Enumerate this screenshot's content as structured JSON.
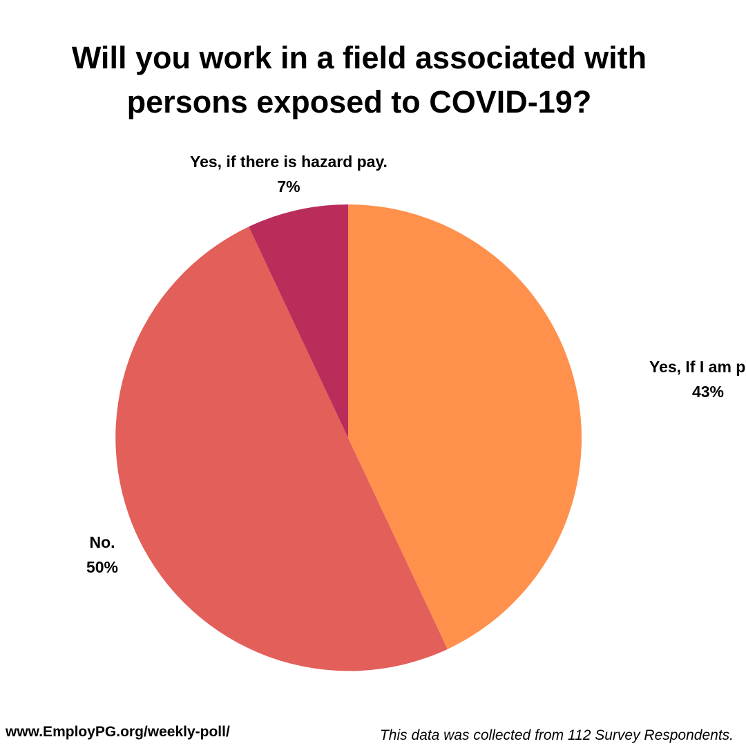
{
  "chart_data": {
    "type": "pie",
    "title_lines": [
      "Will you work in a field associated with",
      "persons exposed to COVID-19?"
    ],
    "slices": [
      {
        "label": "Yes, If I am prot",
        "value": 43,
        "value_label": "43%",
        "color": "#FF914D"
      },
      {
        "label": "No.",
        "value": 50,
        "value_label": "50%",
        "color": "#E35F5A"
      },
      {
        "label": "Yes, if there is hazard pay.",
        "value": 7,
        "value_label": "7%",
        "color": "#BA2D5B"
      }
    ],
    "start_angle": "12 o'clock",
    "direction": "clockwise",
    "legend": "none"
  },
  "footer": {
    "website": "www.EmployPG.org/weekly-poll/",
    "note": "This data was collected from 112 Survey Respondents."
  }
}
